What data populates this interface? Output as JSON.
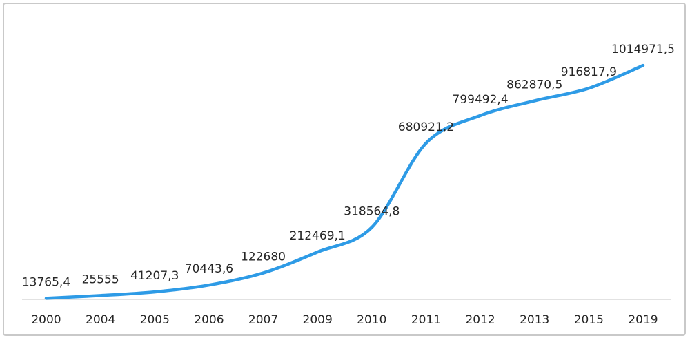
{
  "chart_data": {
    "type": "line",
    "title": "",
    "xlabel": "",
    "ylabel": "",
    "categories": [
      "2000",
      "2004",
      "2005",
      "2006",
      "2007",
      "2009",
      "2010",
      "2011",
      "2012",
      "2013",
      "2015",
      "2019"
    ],
    "series": [
      {
        "values": [
          13765.4,
          25555,
          41207.3,
          70443.6,
          122680,
          212469.1,
          318564.8,
          680921.2,
          799492.4,
          862870.5,
          916817.9,
          1014971.5
        ],
        "labels": [
          "13765,4",
          "25555",
          "41207,3",
          "70443,6",
          "122680",
          "212469,1",
          "318564,8",
          "680921,2",
          "799492,4",
          "862870,5",
          "916817,9",
          "1014971,5"
        ],
        "color": "#2e9be6"
      }
    ],
    "ylim": [
      0,
      1030000
    ],
    "grid": false,
    "legend": "none",
    "axis_color": "#d9d9d9"
  }
}
